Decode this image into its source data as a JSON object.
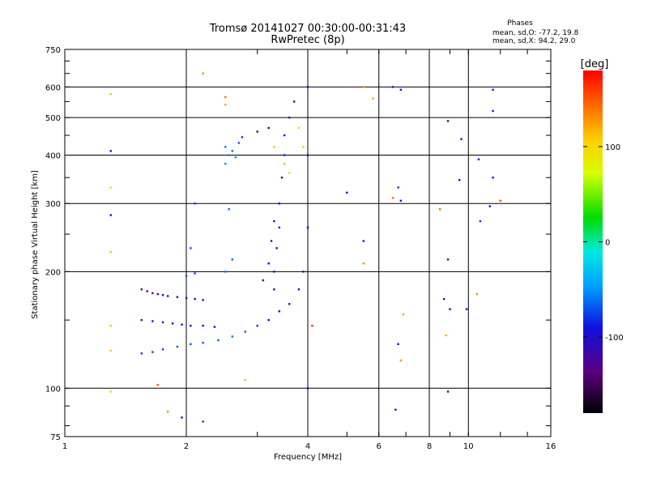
{
  "chart_data": {
    "type": "scatter",
    "title": "Tromsø 20141027 00:30:00-00:31:43",
    "subtitle": "RwPretec (8p)",
    "phases_block": {
      "heading": "Phases",
      "line_o": "mean, sd,O: -77.2, 19.8",
      "line_x": "mean, sd,X:  94.2, 29.0"
    },
    "xlabel": "Frequency [MHz]",
    "ylabel": "Stationary phase Virtual Height [km]",
    "x_scale": "log",
    "y_scale": "log",
    "xlim": [
      1,
      16
    ],
    "ylim": [
      75,
      750
    ],
    "x_ticks": [
      {
        "value": 1,
        "label": "1"
      },
      {
        "value": 2,
        "label": "2"
      },
      {
        "value": 4,
        "label": "4"
      },
      {
        "value": 6,
        "label": "6"
      },
      {
        "value": 8,
        "label": "8"
      },
      {
        "value": 10,
        "label": "10"
      },
      {
        "value": 16,
        "label": "16"
      }
    ],
    "y_ticks": [
      {
        "value": 75,
        "label": "75"
      },
      {
        "value": 100,
        "label": "100"
      },
      {
        "value": 200,
        "label": "200"
      },
      {
        "value": 300,
        "label": "300"
      },
      {
        "value": 400,
        "label": "400"
      },
      {
        "value": 500,
        "label": "500"
      },
      {
        "value": 600,
        "label": "600"
      },
      {
        "value": 750,
        "label": "750"
      }
    ],
    "x_gridlines": [
      2,
      4,
      6,
      8,
      10
    ],
    "y_gridlines": [
      100,
      200,
      300,
      400,
      500,
      600
    ],
    "grid": true,
    "colorbar": {
      "label": "[deg]",
      "range": [
        -180,
        180
      ],
      "ticks": [
        {
          "value": 100,
          "label": "100"
        },
        {
          "value": 0,
          "label": "0"
        },
        {
          "value": -100,
          "label": "-100"
        }
      ]
    },
    "series": [
      {
        "points": [
          [
            1.55,
            180,
            -140
          ],
          [
            1.6,
            178,
            -135
          ],
          [
            1.65,
            176,
            -130
          ],
          [
            1.7,
            175,
            -125
          ],
          [
            1.75,
            174,
            -120
          ],
          [
            1.8,
            173,
            -120
          ],
          [
            1.9,
            172,
            -115
          ],
          [
            2.0,
            171,
            -110
          ],
          [
            2.1,
            170,
            -110
          ],
          [
            2.2,
            169,
            -105
          ],
          [
            1.55,
            150,
            -120
          ],
          [
            1.65,
            149,
            -115
          ],
          [
            1.75,
            148,
            -110
          ],
          [
            1.85,
            147,
            -110
          ],
          [
            1.95,
            146,
            -105
          ],
          [
            2.05,
            145,
            -100
          ],
          [
            2.2,
            145,
            -100
          ],
          [
            2.35,
            144,
            -95
          ],
          [
            1.55,
            123,
            -80
          ],
          [
            1.65,
            124,
            -75
          ],
          [
            1.75,
            126,
            -75
          ],
          [
            1.9,
            128,
            -70
          ],
          [
            2.05,
            130,
            -70
          ],
          [
            2.2,
            131,
            -65
          ],
          [
            2.4,
            133,
            -65
          ],
          [
            2.6,
            136,
            -60
          ],
          [
            2.8,
            140,
            -70
          ],
          [
            3.0,
            145,
            -80
          ],
          [
            3.2,
            150,
            -90
          ],
          [
            3.4,
            158,
            -100
          ],
          [
            3.6,
            165,
            -100
          ],
          [
            3.8,
            180,
            -100
          ],
          [
            3.9,
            200,
            -95
          ],
          [
            4.0,
            260,
            -95
          ],
          [
            4.0,
            400,
            -110
          ],
          [
            4.0,
            600,
            -120
          ],
          [
            3.3,
            180,
            -120
          ],
          [
            3.3,
            200,
            -115
          ],
          [
            3.35,
            230,
            -105
          ],
          [
            3.4,
            260,
            -100
          ],
          [
            3.4,
            300,
            -95
          ],
          [
            3.45,
            350,
            -90
          ],
          [
            3.5,
            400,
            -85
          ],
          [
            3.5,
            450,
            -100
          ],
          [
            3.6,
            500,
            -105
          ],
          [
            3.7,
            550,
            -110
          ],
          [
            3.1,
            190,
            -110
          ],
          [
            3.2,
            210,
            -100
          ],
          [
            3.25,
            240,
            -95
          ],
          [
            3.3,
            270,
            -90
          ],
          [
            2.5,
            420,
            -60
          ],
          [
            2.55,
            400,
            -55
          ],
          [
            2.6,
            410,
            -60
          ],
          [
            2.65,
            395,
            -55
          ],
          [
            2.7,
            430,
            -70
          ],
          [
            2.75,
            445,
            -80
          ],
          [
            2.5,
            380,
            -55
          ],
          [
            2.0,
            195,
            -70
          ],
          [
            2.1,
            198,
            -75
          ],
          [
            2.05,
            230,
            -70
          ],
          [
            2.1,
            300,
            -75
          ],
          [
            2.5,
            200,
            -60
          ],
          [
            2.6,
            215,
            -65
          ],
          [
            2.55,
            290,
            -60
          ],
          [
            3.0,
            460,
            -150
          ],
          [
            3.2,
            470,
            -140
          ],
          [
            3.3,
            420,
            110
          ],
          [
            3.5,
            380,
            115
          ],
          [
            3.8,
            470,
            105
          ],
          [
            3.6,
            360,
            100
          ],
          [
            3.9,
            420,
            110
          ],
          [
            1.3,
            575,
            110
          ],
          [
            1.3,
            410,
            -110
          ],
          [
            1.3,
            330,
            100
          ],
          [
            1.3,
            280,
            -100
          ],
          [
            1.3,
            225,
            110
          ],
          [
            1.3,
            145,
            110
          ],
          [
            1.3,
            125,
            110
          ],
          [
            1.3,
            98,
            100
          ],
          [
            2.2,
            650,
            130
          ],
          [
            2.5,
            565,
            140
          ],
          [
            2.5,
            540,
            120
          ],
          [
            4.1,
            145,
            160
          ],
          [
            4.0,
            100,
            -100
          ],
          [
            5.5,
            600,
            130
          ],
          [
            5.8,
            560,
            120
          ],
          [
            5.0,
            320,
            -110
          ],
          [
            5.5,
            240,
            -100
          ],
          [
            5.5,
            210,
            130
          ],
          [
            6.5,
            600,
            -130
          ],
          [
            6.8,
            590,
            -100
          ],
          [
            6.7,
            330,
            -80
          ],
          [
            6.5,
            310,
            140
          ],
          [
            6.8,
            305,
            -110
          ],
          [
            6.9,
            155,
            120
          ],
          [
            6.7,
            130,
            -90
          ],
          [
            6.8,
            118,
            130
          ],
          [
            6.6,
            88,
            -110
          ],
          [
            8.9,
            490,
            -120
          ],
          [
            9.6,
            440,
            -110
          ],
          [
            8.5,
            290,
            140
          ],
          [
            8.9,
            215,
            -110
          ],
          [
            8.7,
            170,
            -100
          ],
          [
            9.0,
            160,
            -100
          ],
          [
            8.8,
            137,
            120
          ],
          [
            8.9,
            98,
            -110
          ],
          [
            9.9,
            160,
            -100
          ],
          [
            10.6,
            390,
            -100
          ],
          [
            11.5,
            520,
            -110
          ],
          [
            11.5,
            590,
            -100
          ],
          [
            11.5,
            350,
            -90
          ],
          [
            12.0,
            305,
            150
          ],
          [
            10.7,
            270,
            -80
          ],
          [
            11.3,
            295,
            -110
          ],
          [
            10.5,
            175,
            130
          ],
          [
            9.5,
            345,
            -110
          ],
          [
            1.7,
            102,
            150
          ],
          [
            1.8,
            87,
            130
          ],
          [
            1.95,
            84,
            -110
          ],
          [
            2.2,
            82,
            -80
          ],
          [
            2.8,
            105,
            110
          ]
        ]
      }
    ]
  }
}
